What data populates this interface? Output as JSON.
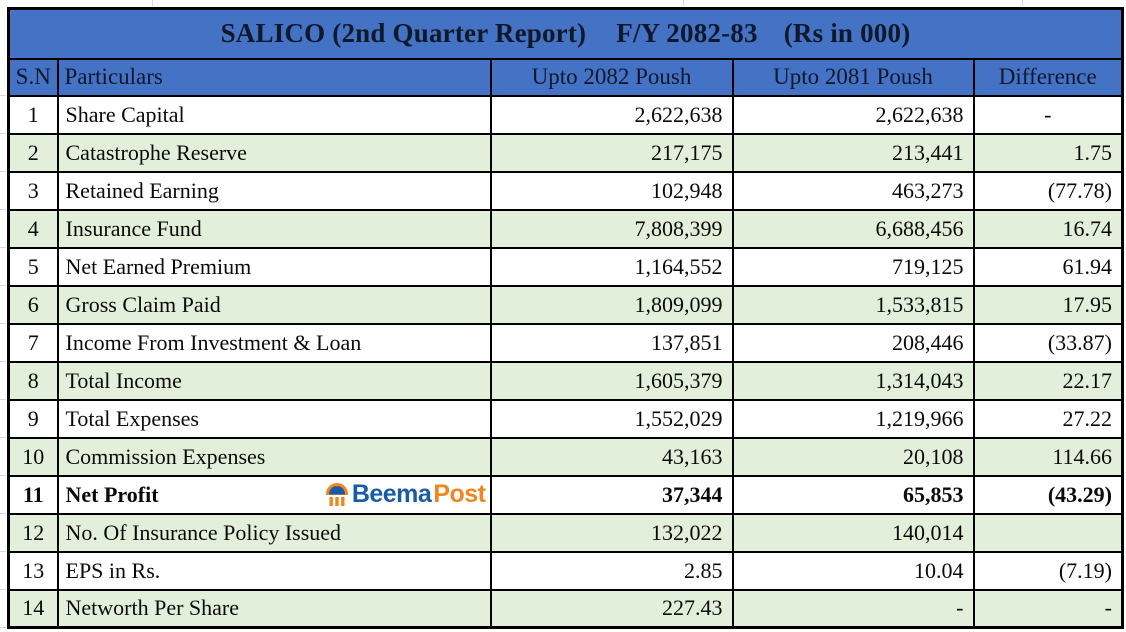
{
  "title": {
    "parts": [
      "SALICO (2nd Quarter Report)",
      "F/Y 2082-83",
      "(Rs in 000)"
    ]
  },
  "table": {
    "headers": [
      "S.N",
      "Particulars",
      "Upto 2082 Poush",
      "Upto 2081 Poush",
      "Difference"
    ],
    "rows": [
      {
        "sn": "1",
        "particulars": "Share Capital",
        "upto_2082": "2,622,638",
        "upto_2081": "2,622,638",
        "difference": "-",
        "diff_center": true
      },
      {
        "sn": "2",
        "particulars": "Catastrophe Reserve",
        "upto_2082": "217,175",
        "upto_2081": "213,441",
        "difference": "1.75"
      },
      {
        "sn": "3",
        "particulars": "Retained Earning",
        "upto_2082": "102,948",
        "upto_2081": "463,273",
        "difference": "(77.78)"
      },
      {
        "sn": "4",
        "particulars": "Insurance Fund",
        "upto_2082": "7,808,399",
        "upto_2081": "6,688,456",
        "difference": "16.74"
      },
      {
        "sn": "5",
        "particulars": "Net Earned Premium",
        "upto_2082": "1,164,552",
        "upto_2081": "719,125",
        "difference": "61.94"
      },
      {
        "sn": "6",
        "particulars": "Gross Claim Paid",
        "upto_2082": "1,809,099",
        "upto_2081": "1,533,815",
        "difference": "17.95"
      },
      {
        "sn": "7",
        "particulars": "Income From Investment & Loan",
        "upto_2082": "137,851",
        "upto_2081": "208,446",
        "difference": "(33.87)"
      },
      {
        "sn": "8",
        "particulars": "Total Income",
        "upto_2082": "1,605,379",
        "upto_2081": "1,314,043",
        "difference": "22.17"
      },
      {
        "sn": "9",
        "particulars": "Total Expenses",
        "upto_2082": "1,552,029",
        "upto_2081": "1,219,966",
        "difference": "27.22"
      },
      {
        "sn": "10",
        "particulars": "Commission Expenses",
        "upto_2082": "43,163",
        "upto_2081": "20,108",
        "difference": "114.66"
      },
      {
        "sn": "11",
        "particulars": "Net Profit",
        "upto_2082": "37,344",
        "upto_2081": "65,853",
        "difference": "(43.29)",
        "bold": true,
        "logo": true
      },
      {
        "sn": "12",
        "particulars": "No. Of Insurance Policy Issued",
        "upto_2082": "132,022",
        "upto_2081": "140,014",
        "difference": ""
      },
      {
        "sn": "13",
        "particulars": "EPS in Rs.",
        "upto_2082": "2.85",
        "upto_2081": "10.04",
        "difference": "(7.19)"
      },
      {
        "sn": "14",
        "particulars": "Networth Per Share",
        "upto_2082": "227.43",
        "upto_2081": "-",
        "difference": "-"
      }
    ]
  },
  "watermark": {
    "icon": "beema-pavilion-umbrella-icon",
    "text_primary": "Beema",
    "text_secondary": "Post"
  },
  "colors": {
    "header_blue": "#4472C4",
    "row_green": "#E2EFDA",
    "row_white": "#FFFFFF",
    "border_black": "#000000",
    "brand_blue": "#1B5AA5",
    "brand_orange": "#F0861F"
  }
}
